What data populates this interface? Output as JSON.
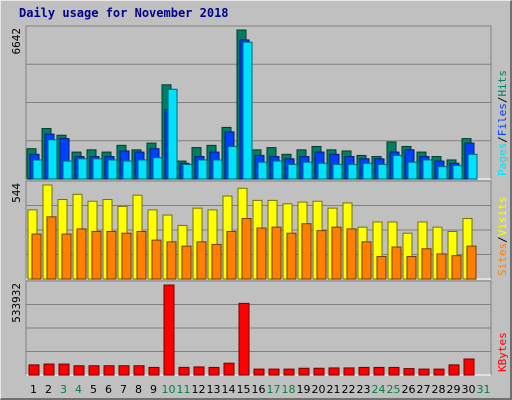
{
  "title": "Daily usage for November 2018",
  "colors": {
    "hits": "#008060",
    "files": "#0040ff",
    "pages": "#00e0ff",
    "visits": "#ffff00",
    "sites": "#ff8000",
    "kbytes": "#ff0000",
    "weekend_label": "#008040",
    "weekday_label": "#000000",
    "panel_bg": "#c0c0c0"
  },
  "panels": {
    "top": {
      "max_label": "6642",
      "legend": [
        "Pages",
        "Files",
        "Hits"
      ]
    },
    "middle": {
      "max_label": "544",
      "legend": [
        "Sites",
        "Visits"
      ]
    },
    "bottom": {
      "max_label": "533932",
      "legend": [
        "KBytes"
      ]
    }
  },
  "chart_data": [
    {
      "type": "bar",
      "title": "Daily usage for November 2018",
      "x": [
        "1",
        "2",
        "3",
        "4",
        "5",
        "6",
        "7",
        "8",
        "9",
        "10",
        "11",
        "12",
        "13",
        "14",
        "15",
        "16",
        "17",
        "18",
        "19",
        "20",
        "21",
        "22",
        "23",
        "24",
        "25",
        "26",
        "27",
        "28",
        "29",
        "30",
        "31"
      ],
      "weekend_days": [
        "3",
        "4",
        "10",
        "11",
        "17",
        "18",
        "24",
        "25",
        "31"
      ],
      "ylim": [
        0,
        6642
      ],
      "series": [
        {
          "name": "Hits",
          "values": [
            1350,
            2250,
            1950,
            1200,
            1300,
            1200,
            1500,
            1300,
            1600,
            4200,
            800,
            1400,
            1500,
            2300,
            6642,
            1300,
            1400,
            1100,
            1300,
            1450,
            1300,
            1250,
            1050,
            1000,
            1650,
            1450,
            1200,
            1000,
            850,
            1800,
            0
          ]
        },
        {
          "name": "Files",
          "values": [
            1100,
            2000,
            1800,
            1000,
            1000,
            1000,
            1250,
            1200,
            1350,
            3100,
            700,
            1000,
            1200,
            2100,
            6200,
            1050,
            1000,
            900,
            1000,
            1200,
            1100,
            1000,
            900,
            900,
            1200,
            1300,
            1000,
            800,
            700,
            1600,
            0
          ]
        },
        {
          "name": "Pages",
          "values": [
            850,
            1750,
            800,
            900,
            900,
            850,
            800,
            850,
            950,
            4000,
            650,
            850,
            850,
            1450,
            6100,
            750,
            800,
            650,
            750,
            700,
            650,
            650,
            700,
            650,
            1050,
            750,
            850,
            550,
            600,
            1100,
            0
          ]
        }
      ]
    },
    {
      "type": "bar",
      "ylim": [
        0,
        544
      ],
      "series": [
        {
          "name": "Visits",
          "values": [
            400,
            544,
            460,
            490,
            450,
            460,
            420,
            485,
            400,
            370,
            310,
            410,
            400,
            480,
            525,
            455,
            455,
            435,
            445,
            450,
            410,
            440,
            300,
            330,
            330,
            265,
            330,
            300,
            275,
            350,
            0
          ]
        },
        {
          "name": "Sites",
          "values": [
            260,
            360,
            260,
            290,
            275,
            275,
            265,
            275,
            225,
            215,
            190,
            215,
            200,
            275,
            350,
            295,
            300,
            265,
            320,
            280,
            300,
            290,
            215,
            130,
            185,
            130,
            175,
            145,
            135,
            190,
            0
          ]
        }
      ]
    },
    {
      "type": "bar",
      "ylim": [
        0,
        533932
      ],
      "series": [
        {
          "name": "KBytes",
          "values": [
            60000,
            65000,
            65000,
            55000,
            55000,
            55000,
            55000,
            55000,
            45000,
            533932,
            45000,
            48000,
            45000,
            70000,
            425000,
            35000,
            35000,
            35000,
            40000,
            40000,
            42000,
            42000,
            45000,
            45000,
            45000,
            38000,
            35000,
            35000,
            60000,
            95000,
            0
          ]
        }
      ]
    }
  ]
}
